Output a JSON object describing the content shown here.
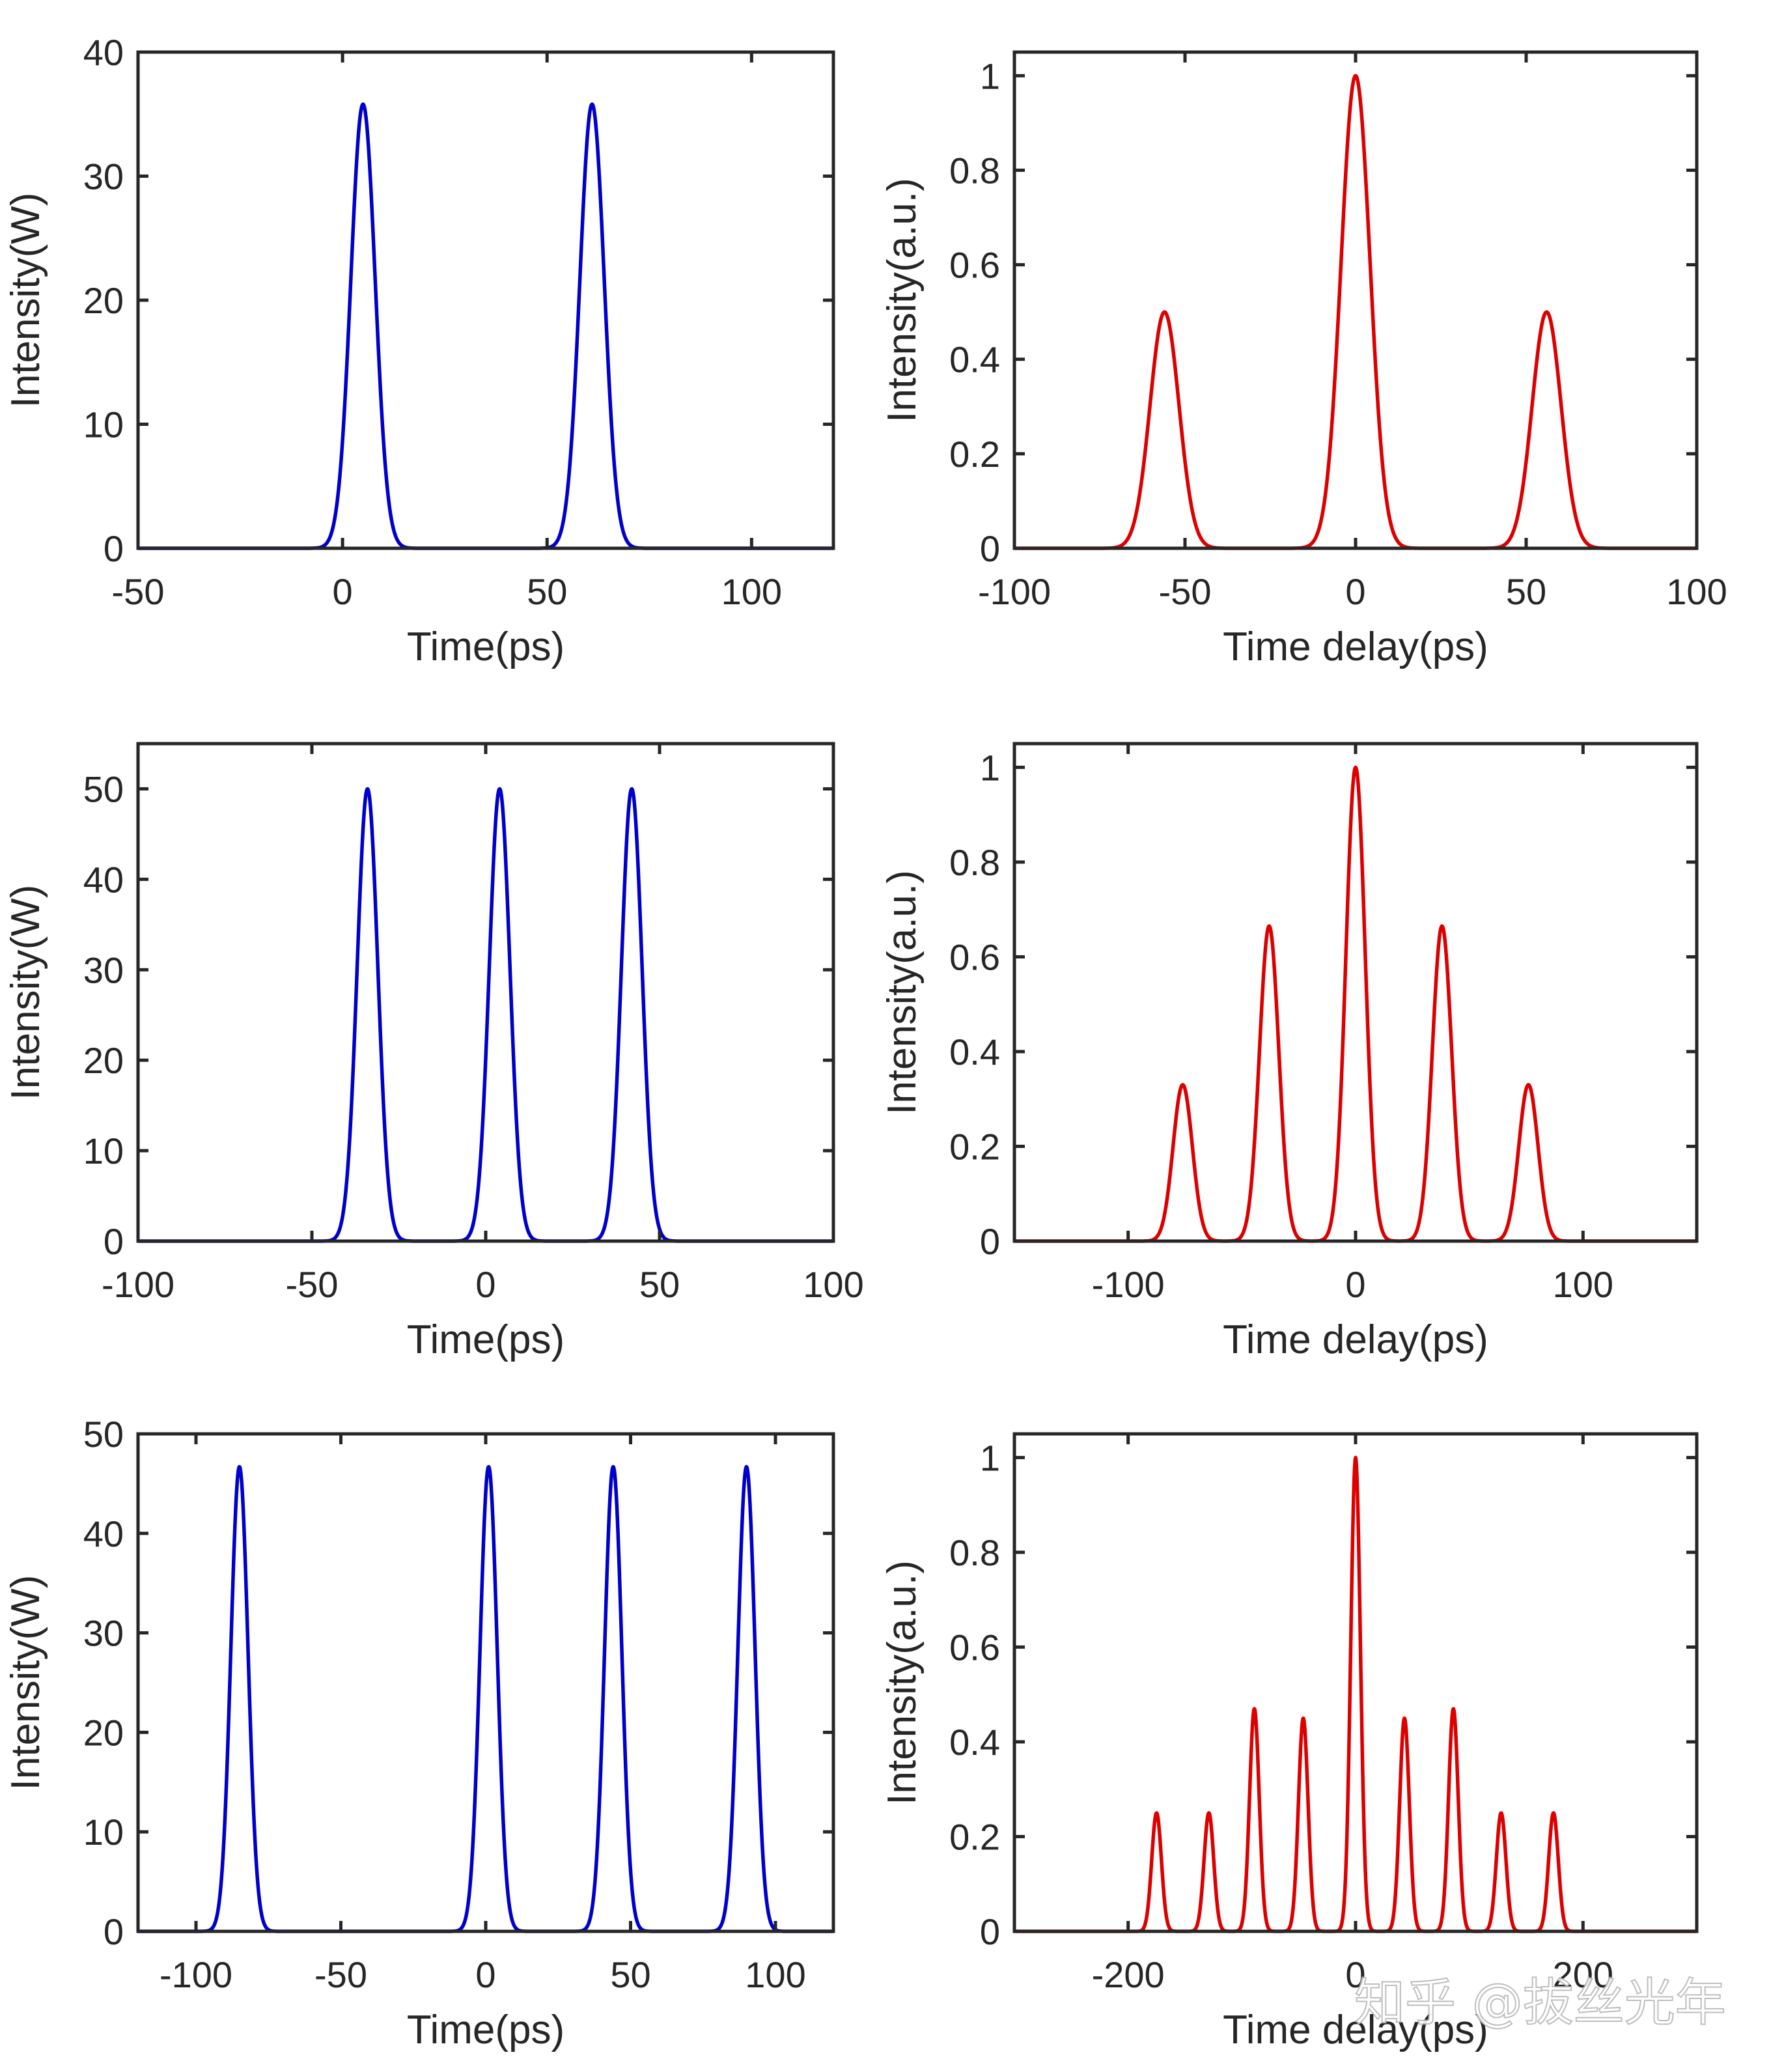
{
  "watermark": "知乎 @拔丝光年",
  "colors": {
    "time_series": "#0000cc",
    "autocorrelation": "#dd0000",
    "axes": "#262626"
  },
  "chart_data": [
    {
      "id": "row1-time",
      "type": "line",
      "title": "",
      "xlabel": "Time(ps)",
      "ylabel": "Intensity(W)",
      "xlim": [
        -50,
        120
      ],
      "ylim": [
        0,
        40
      ],
      "xticks": [
        -50,
        0,
        50,
        100
      ],
      "xtick_labels": [
        "-50",
        "0",
        "50",
        "100"
      ],
      "yticks": [
        0,
        10,
        20,
        30,
        40
      ],
      "ytick_labels": [
        "0",
        "10",
        "20",
        "30",
        "40"
      ],
      "grid": false,
      "series_color": "time_series",
      "series": [
        {
          "pulse_shape": "gaussian",
          "fwhm_ps": 7,
          "peaks": [
            {
              "x": 5,
              "y": 35.8
            },
            {
              "x": 61,
              "y": 35.8
            }
          ]
        }
      ]
    },
    {
      "id": "row1-autocorr",
      "type": "line",
      "title": "",
      "xlabel": "Time delay(ps)",
      "ylabel": "Intensity(a.u.)",
      "xlim": [
        -100,
        100
      ],
      "ylim": [
        0,
        1.05
      ],
      "xticks": [
        -100,
        -50,
        0,
        50,
        100
      ],
      "xtick_labels": [
        "-100",
        "-50",
        "0",
        "50",
        "100"
      ],
      "yticks": [
        0,
        0.2,
        0.4,
        0.6,
        0.8,
        1
      ],
      "ytick_labels": [
        "0",
        "0.2",
        "0.4",
        "0.6",
        "0.8",
        "1"
      ],
      "grid": false,
      "series_color": "autocorrelation",
      "series": [
        {
          "pulse_shape": "gaussian",
          "fwhm_ps": 10,
          "peaks": [
            {
              "x": -56,
              "y": 0.5
            },
            {
              "x": 0,
              "y": 1.0
            },
            {
              "x": 56,
              "y": 0.5
            }
          ]
        }
      ]
    },
    {
      "id": "row2-time",
      "type": "line",
      "title": "",
      "xlabel": "Time(ps)",
      "ylabel": "Intensity(W)",
      "xlim": [
        -100,
        100
      ],
      "ylim": [
        0,
        55
      ],
      "xticks": [
        -100,
        -50,
        0,
        50,
        100
      ],
      "xtick_labels": [
        "-100",
        "-50",
        "0",
        "50",
        "100"
      ],
      "yticks": [
        0,
        10,
        20,
        30,
        40,
        50
      ],
      "ytick_labels": [
        "0",
        "10",
        "20",
        "30",
        "40",
        "50"
      ],
      "grid": false,
      "series_color": "time_series",
      "series": [
        {
          "pulse_shape": "gaussian",
          "fwhm_ps": 7,
          "peaks": [
            {
              "x": -34,
              "y": 50
            },
            {
              "x": 4,
              "y": 50
            },
            {
              "x": 42,
              "y": 50
            }
          ]
        }
      ]
    },
    {
      "id": "row2-autocorr",
      "type": "line",
      "title": "",
      "xlabel": "Time delay(ps)",
      "ylabel": "Intensity(a.u.)",
      "xlim": [
        -150,
        150
      ],
      "ylim": [
        0,
        1.05
      ],
      "xticks": [
        -100,
        0,
        100
      ],
      "xtick_labels": [
        "-100",
        "0",
        "100"
      ],
      "yticks": [
        0,
        0.2,
        0.4,
        0.6,
        0.8,
        1
      ],
      "ytick_labels": [
        "0",
        "0.2",
        "0.4",
        "0.6",
        "0.8",
        "1"
      ],
      "grid": false,
      "series_color": "autocorrelation",
      "series": [
        {
          "pulse_shape": "gaussian",
          "fwhm_ps": 10,
          "peaks": [
            {
              "x": -76,
              "y": 0.33
            },
            {
              "x": -38,
              "y": 0.665
            },
            {
              "x": 0,
              "y": 1.0
            },
            {
              "x": 38,
              "y": 0.665
            },
            {
              "x": 76,
              "y": 0.33
            }
          ]
        }
      ]
    },
    {
      "id": "row3-time",
      "type": "line",
      "title": "",
      "xlabel": "Time(ps)",
      "ylabel": "Intensity(W)",
      "xlim": [
        -120,
        120
      ],
      "ylim": [
        0,
        50
      ],
      "xticks": [
        -100,
        -50,
        0,
        50,
        100
      ],
      "xtick_labels": [
        "-100",
        "-50",
        "0",
        "50",
        "100"
      ],
      "yticks": [
        0,
        10,
        20,
        30,
        40,
        50
      ],
      "ytick_labels": [
        "0",
        "10",
        "20",
        "30",
        "40",
        "50"
      ],
      "grid": false,
      "series_color": "time_series",
      "series": [
        {
          "pulse_shape": "gaussian",
          "fwhm_ps": 7,
          "peaks": [
            {
              "x": -85,
              "y": 46.7
            },
            {
              "x": 1,
              "y": 46.7
            },
            {
              "x": 44,
              "y": 46.7
            },
            {
              "x": 90,
              "y": 46.7
            }
          ]
        }
      ]
    },
    {
      "id": "row3-autocorr",
      "type": "line",
      "title": "",
      "xlabel": "Time delay(ps)",
      "ylabel": "Intensity(a.u.)",
      "xlim": [
        -300,
        300
      ],
      "ylim": [
        0,
        1.05
      ],
      "xticks": [
        -200,
        0,
        200
      ],
      "xtick_labels": [
        "-200",
        "0",
        "200"
      ],
      "yticks": [
        0,
        0.2,
        0.4,
        0.6,
        0.8,
        1
      ],
      "ytick_labels": [
        "0",
        "0.2",
        "0.4",
        "0.6",
        "0.8",
        "1"
      ],
      "grid": false,
      "series_color": "autocorrelation",
      "series": [
        {
          "pulse_shape": "gaussian",
          "fwhm_ps": 10,
          "peaks": [
            {
              "x": -175,
              "y": 0.25
            },
            {
              "x": -129,
              "y": 0.25
            },
            {
              "x": -89,
              "y": 0.47
            },
            {
              "x": -46,
              "y": 0.45
            },
            {
              "x": 0,
              "y": 1.0
            },
            {
              "x": 43,
              "y": 0.45
            },
            {
              "x": 86,
              "y": 0.47
            },
            {
              "x": 128,
              "y": 0.25
            },
            {
              "x": 174,
              "y": 0.25
            }
          ]
        }
      ]
    }
  ]
}
